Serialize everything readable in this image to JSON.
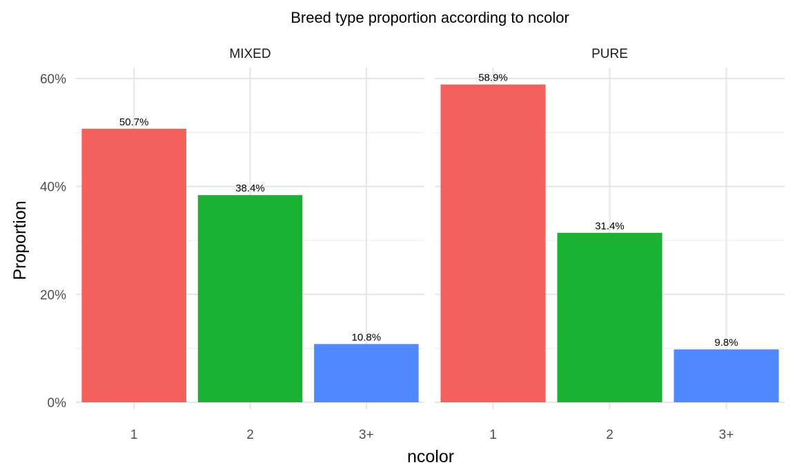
{
  "chart_data": {
    "type": "bar",
    "title": "Breed type proportion according to ncolor",
    "xlabel": "ncolor",
    "ylabel": "Proportion",
    "categories": [
      "1",
      "2",
      "3+"
    ],
    "colors": {
      "1": "#F8766D",
      "2": "#00BA38",
      "3+": "#619CFF"
    },
    "bar_colors_rendered": [
      "#F4605C",
      "#1BB233",
      "#5088FF"
    ],
    "ylim": [
      0,
      0.6
    ],
    "y_ticks": [
      {
        "value": 0,
        "label": "0%"
      },
      {
        "value": 0.2,
        "label": "20%"
      },
      {
        "value": 0.4,
        "label": "40%"
      },
      {
        "value": 0.6,
        "label": "60%"
      }
    ],
    "grid": true,
    "legend": "none",
    "facets": [
      {
        "name": "MIXED",
        "values": [
          0.507,
          0.384,
          0.108
        ],
        "labels": [
          "50.7%",
          "38.4%",
          "10.8%"
        ]
      },
      {
        "name": "PURE",
        "values": [
          0.589,
          0.314,
          0.098
        ],
        "labels": [
          "58.9%",
          "31.4%",
          "9.8%"
        ]
      }
    ]
  }
}
